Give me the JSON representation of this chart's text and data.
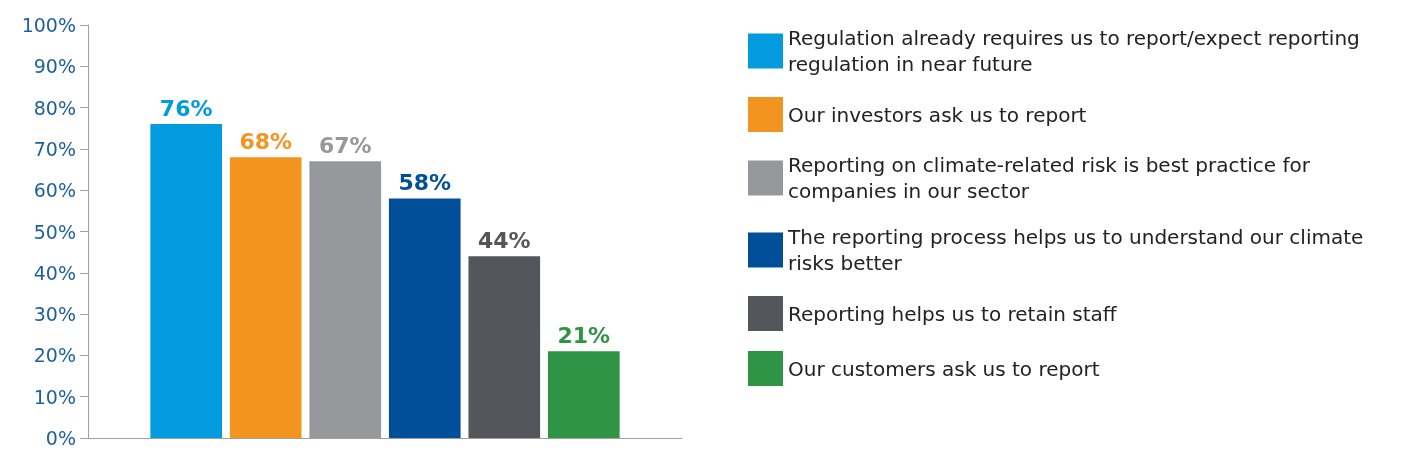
{
  "chart_data": {
    "type": "bar",
    "categories": [
      null
    ],
    "series": [
      {
        "name": "Regulation already requires us to report/expect reporting regulation in near future",
        "color": "#039be0",
        "values": [
          76
        ],
        "value_labels": [
          "76%"
        ]
      },
      {
        "name": "Our investors ask us to report",
        "color": "#f39420",
        "values": [
          68
        ],
        "value_labels": [
          "68%"
        ]
      },
      {
        "name": "Reporting on climate-related risk is best practice for companies in our sector",
        "color": "#96989b",
        "values": [
          67
        ],
        "value_labels": [
          "67%"
        ]
      },
      {
        "name": "The reporting process helps us to understand our climate risks better",
        "color": "#004f98",
        "values": [
          58
        ],
        "value_labels": [
          "58%"
        ]
      },
      {
        "name": "Reporting helps us to retain staff",
        "color": "#53565a",
        "values": [
          44
        ],
        "value_labels": [
          "44%"
        ]
      },
      {
        "name": "Our customers ask us to report",
        "color": "#2f9446",
        "values": [
          21
        ],
        "value_labels": [
          "21%"
        ]
      }
    ],
    "ylim": [
      0,
      100
    ],
    "yticks": [
      {
        "value": 0,
        "label": "0%"
      },
      {
        "value": 10,
        "label": "10%"
      },
      {
        "value": 20,
        "label": "20%"
      },
      {
        "value": 30,
        "label": "30%"
      },
      {
        "value": 40,
        "label": "40%"
      },
      {
        "value": 50,
        "label": "50%"
      },
      {
        "value": 60,
        "label": "60%"
      },
      {
        "value": 70,
        "label": "70%"
      },
      {
        "value": 80,
        "label": "80%"
      },
      {
        "value": 90,
        "label": "90%"
      },
      {
        "value": 100,
        "label": "100%"
      }
    ],
    "grid": false,
    "legend": "right"
  }
}
